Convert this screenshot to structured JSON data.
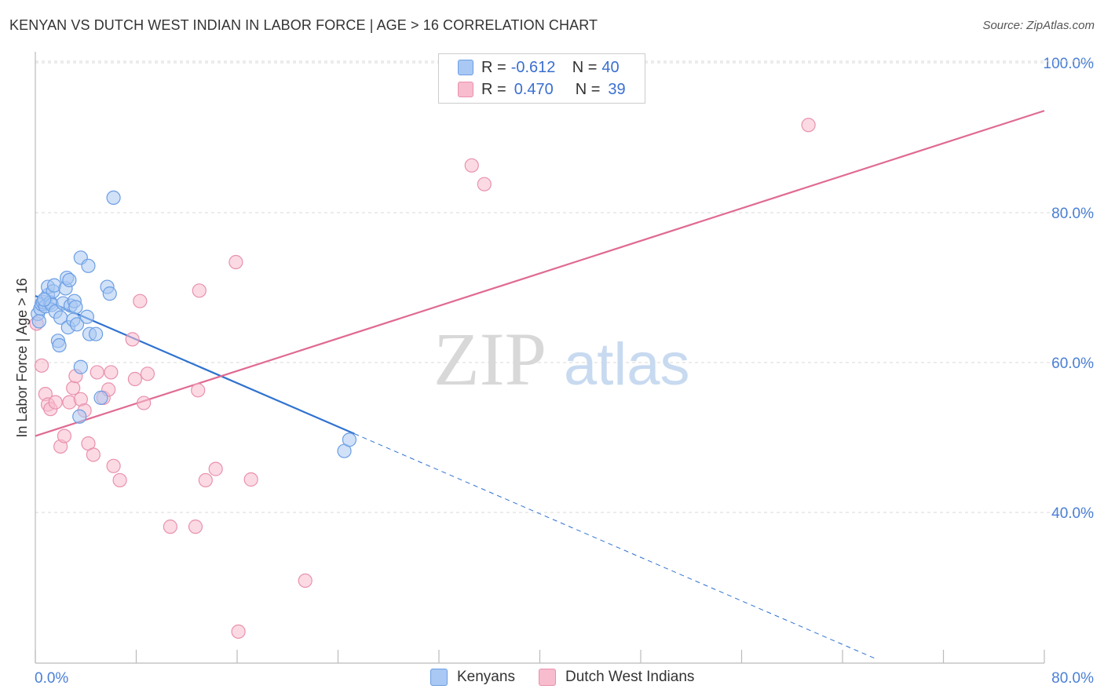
{
  "title": "KENYAN VS DUTCH WEST INDIAN IN LABOR FORCE | AGE > 16 CORRELATION CHART",
  "source": "Source: ZipAtlas.com",
  "watermark": {
    "zip": "ZIP",
    "atlas": "atlas"
  },
  "legend": {
    "r_label": "R =",
    "n_label": "N =",
    "rows": [
      {
        "r": "-0.612",
        "n": "40"
      },
      {
        "r": "0.470",
        "n": "39"
      }
    ]
  },
  "bottom_legend": [
    "Kenyans",
    "Dutch West Indians"
  ],
  "colors": {
    "blue_fill": "#a9c8f3",
    "blue_stroke": "#6b9ee4",
    "blue_line": "#2f72d0",
    "pink_fill": "#f7bccd",
    "pink_stroke": "#e991ad",
    "pink_line": "#e06a92",
    "grid": "#d8d8d8",
    "tick_text": "#4a7fd6"
  },
  "chart_data": {
    "type": "scatter",
    "title": "KENYAN VS DUTCH WEST INDIAN IN LABOR FORCE | AGE > 16 CORRELATION CHART",
    "xlabel": "",
    "ylabel": "In Labor Force | Age > 16",
    "xlim": [
      0,
      80
    ],
    "ylim": [
      20,
      102
    ],
    "x_tick_labels": [
      "0.0%",
      "80.0%"
    ],
    "y_ticks": [
      40,
      60,
      80,
      100
    ],
    "y_tick_labels": [
      "40.0%",
      "60.0%",
      "80.0%",
      "100.0%"
    ],
    "grid": true,
    "legend_position": "top-center",
    "series": [
      {
        "name": "Kenyans",
        "color": "#a9c8f3",
        "points": [
          [
            0.2,
            66.5
          ],
          [
            0.4,
            67.2
          ],
          [
            0.5,
            67.8
          ],
          [
            0.6,
            68.1
          ],
          [
            0.8,
            67.5
          ],
          [
            1.0,
            69.0
          ],
          [
            1.0,
            70.1
          ],
          [
            1.2,
            68.0
          ],
          [
            1.3,
            67.7
          ],
          [
            1.4,
            69.5
          ],
          [
            1.5,
            70.3
          ],
          [
            1.6,
            66.8
          ],
          [
            1.8,
            62.9
          ],
          [
            1.9,
            62.3
          ],
          [
            2.0,
            66.0
          ],
          [
            2.2,
            67.9
          ],
          [
            2.4,
            69.9
          ],
          [
            2.5,
            71.3
          ],
          [
            2.6,
            64.7
          ],
          [
            2.7,
            71.0
          ],
          [
            2.8,
            67.6
          ],
          [
            3.0,
            65.7
          ],
          [
            3.1,
            68.2
          ],
          [
            3.2,
            67.4
          ],
          [
            3.3,
            65.1
          ],
          [
            3.5,
            52.8
          ],
          [
            3.6,
            59.4
          ],
          [
            3.6,
            74.0
          ],
          [
            4.1,
            66.1
          ],
          [
            4.2,
            72.9
          ],
          [
            4.3,
            63.8
          ],
          [
            4.8,
            63.8
          ],
          [
            5.2,
            55.3
          ],
          [
            5.7,
            70.1
          ],
          [
            5.9,
            69.2
          ],
          [
            6.2,
            82.0
          ],
          [
            24.5,
            48.2
          ],
          [
            24.9,
            49.7
          ],
          [
            0.3,
            65.5
          ],
          [
            0.7,
            68.4
          ]
        ]
      },
      {
        "name": "Dutch West Indians",
        "color": "#f7bccd",
        "points": [
          [
            0.1,
            65.2
          ],
          [
            0.5,
            59.6
          ],
          [
            0.8,
            55.8
          ],
          [
            1.0,
            54.4
          ],
          [
            1.2,
            53.8
          ],
          [
            1.6,
            54.7
          ],
          [
            2.0,
            48.8
          ],
          [
            2.3,
            50.2
          ],
          [
            2.7,
            54.7
          ],
          [
            3.0,
            56.6
          ],
          [
            3.2,
            58.2
          ],
          [
            3.6,
            55.1
          ],
          [
            3.9,
            53.6
          ],
          [
            4.2,
            49.2
          ],
          [
            4.6,
            47.7
          ],
          [
            4.9,
            58.7
          ],
          [
            5.4,
            55.3
          ],
          [
            5.8,
            56.4
          ],
          [
            6.0,
            58.7
          ],
          [
            6.2,
            46.2
          ],
          [
            6.7,
            44.3
          ],
          [
            7.7,
            63.1
          ],
          [
            7.9,
            57.8
          ],
          [
            8.3,
            68.2
          ],
          [
            8.6,
            54.6
          ],
          [
            8.9,
            58.5
          ],
          [
            10.7,
            38.1
          ],
          [
            12.7,
            38.1
          ],
          [
            12.9,
            56.3
          ],
          [
            13.0,
            69.6
          ],
          [
            13.5,
            44.3
          ],
          [
            14.3,
            45.8
          ],
          [
            15.9,
            73.4
          ],
          [
            16.1,
            24.1
          ],
          [
            17.1,
            44.4
          ],
          [
            21.4,
            30.9
          ],
          [
            34.6,
            86.3
          ],
          [
            35.6,
            83.8
          ],
          [
            61.3,
            91.7
          ]
        ]
      }
    ],
    "trend_lines": [
      {
        "series": "Kenyans",
        "solid": [
          [
            0,
            68.9
          ],
          [
            25.3,
            50.5
          ]
        ],
        "dashed": [
          [
            25.3,
            50.5
          ],
          [
            66.6,
            20.5
          ]
        ]
      },
      {
        "series": "Dutch West Indians",
        "solid": [
          [
            0,
            50.2
          ],
          [
            80,
            93.6
          ]
        ]
      }
    ]
  }
}
